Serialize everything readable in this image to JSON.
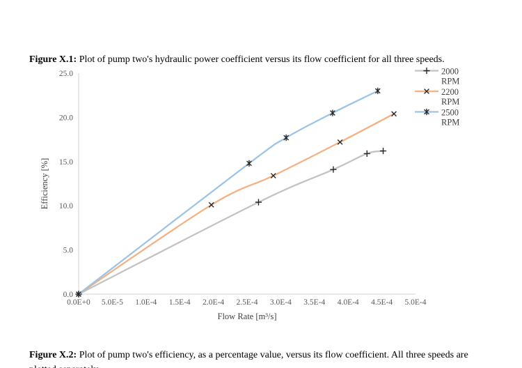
{
  "caption_top": {
    "bold": "Figure X.1:",
    "text": " Plot of pump two's hydraulic power coefficient versus its flow coefficient for all three speeds."
  },
  "caption_bottom": {
    "bold": "Figure X.2:",
    "text": " Plot of pump two's efficiency, as a percentage value, versus its flow coefficient. All three speeds are plotted separately."
  },
  "chart_data": {
    "type": "line",
    "title": "",
    "xlabel": "Flow Rate [m³/s]",
    "ylabel": "Efficiency [%]",
    "xlim": [
      0,
      0.0005
    ],
    "ylim": [
      0,
      25
    ],
    "grid": false,
    "legend_position": "right",
    "x_ticks": {
      "labels": [
        "0.0E+0",
        "5.0E-5",
        "1.0E-4",
        "1.5E-4",
        "2.0E-4",
        "2.5E-4",
        "3.0E-4",
        "3.5E-4",
        "4.0E-4",
        "4.5E-4",
        "5.0E-4"
      ],
      "values": [
        0,
        5e-05,
        0.0001,
        0.00015,
        0.0002,
        0.00025,
        0.0003,
        0.00035,
        0.0004,
        0.00045,
        0.0005
      ]
    },
    "y_ticks": {
      "labels": [
        "0.0",
        "5.0",
        "10.0",
        "15.0",
        "20.0",
        "25.0"
      ],
      "values": [
        0,
        5,
        10,
        15,
        20,
        25
      ]
    },
    "series": [
      {
        "name": "2000 RPM",
        "marker": "plus",
        "color": "#C3C3C3",
        "x": [
          0,
          0.000267,
          0.000378,
          0.000428,
          0.000452
        ],
        "y": [
          0,
          10.4,
          14.1,
          15.9,
          16.2
        ]
      },
      {
        "name": "2200 RPM",
        "marker": "x",
        "color": "#F4B183",
        "x": [
          0,
          0.000197,
          0.000289,
          0.000388,
          0.000468
        ],
        "y": [
          0,
          10.1,
          13.4,
          17.2,
          20.4
        ]
      },
      {
        "name": "2500 RPM",
        "marker": "star",
        "color": "#9DC3E6",
        "x": [
          0,
          0.000253,
          0.000308,
          0.000377,
          0.000444
        ],
        "y": [
          0,
          14.8,
          17.7,
          20.5,
          23.0
        ]
      }
    ],
    "axis_color": "#D2D2D2",
    "tick_label_color": "#595959",
    "marker_color": "#262626"
  }
}
